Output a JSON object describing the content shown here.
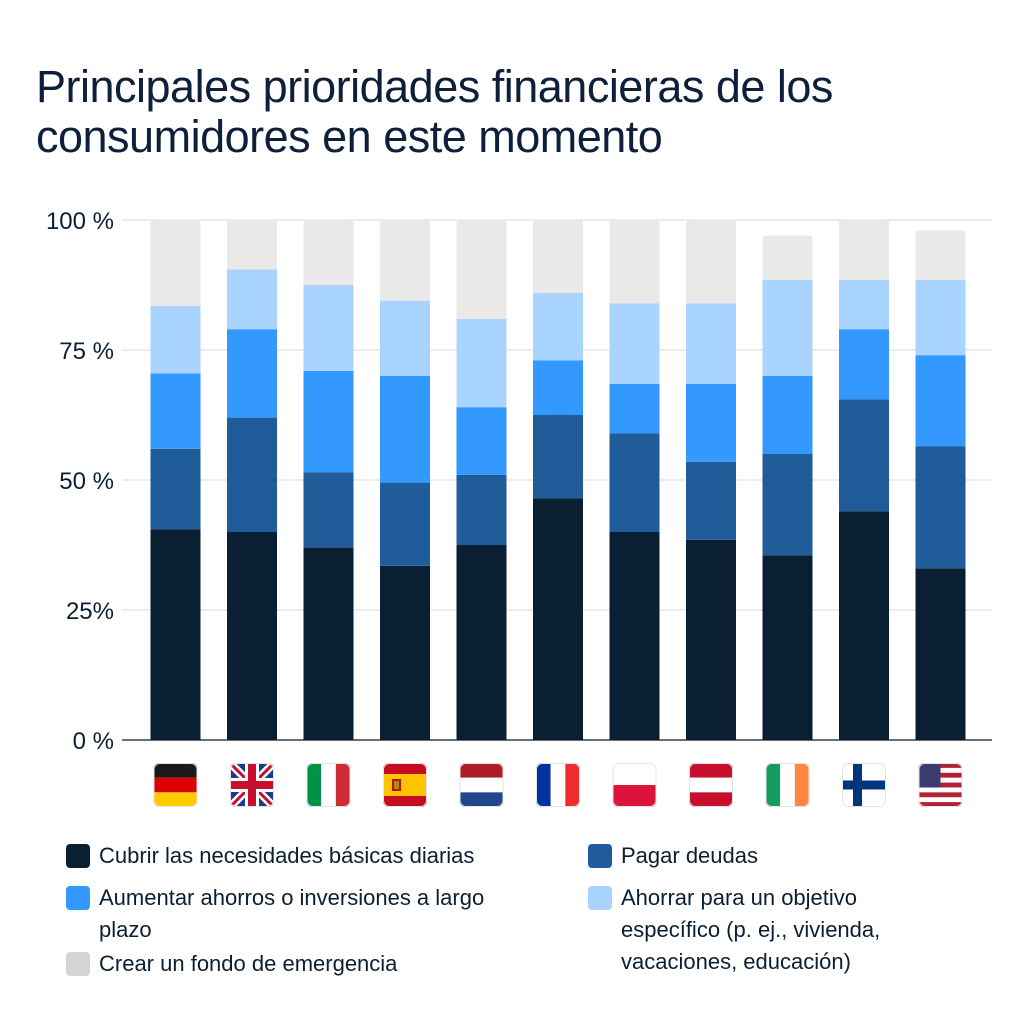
{
  "title": "Principales prioridades financieras de los consumidores en este momento",
  "chart_data": {
    "type": "bar",
    "stacked": true,
    "categories": [
      "Alemania",
      "Reino Unido",
      "Italia",
      "España",
      "Países Bajos",
      "Francia",
      "Polonia",
      "Austria",
      "Irlanda",
      "Finlandia",
      "Estados Unidos"
    ],
    "category_icons": [
      "flag-de",
      "flag-gb",
      "flag-it",
      "flag-es",
      "flag-nl",
      "flag-fr",
      "flag-pl",
      "flag-at",
      "flag-ie",
      "flag-fi",
      "flag-us"
    ],
    "ylim": [
      0,
      100
    ],
    "yticks": [
      {
        "value": 0,
        "label": "0 %"
      },
      {
        "value": 25,
        "label": "25%"
      },
      {
        "value": 50,
        "label": "50 %"
      },
      {
        "value": 75,
        "label": "75 %"
      },
      {
        "value": 100,
        "label": "100 %"
      }
    ],
    "grid": true,
    "legend_position": "bottom",
    "series": [
      {
        "name": "Cubrir las necesidades básicas diarias",
        "color": "#0b1f33",
        "values": [
          40.5,
          40,
          37,
          33.5,
          37.5,
          46.5,
          40,
          38.5,
          35.5,
          44,
          33
        ]
      },
      {
        "name": "Pagar deudas",
        "color": "#1f5c99",
        "values": [
          15.5,
          22,
          14.5,
          16,
          13.5,
          16,
          19,
          15,
          19.5,
          21.5,
          23.5
        ]
      },
      {
        "name": "Aumentar ahorros o inversiones a largo plazo",
        "color": "#3399ff",
        "values": [
          14.5,
          17,
          19.5,
          20.5,
          13,
          10.5,
          9.5,
          15,
          15,
          13.5,
          17.5
        ]
      },
      {
        "name": "Ahorrar para un objetivo específico (p. ej., vivienda, vacaciones, educación)",
        "color": "#a8d4ff",
        "values": [
          13,
          11.5,
          16.5,
          14.5,
          17,
          13,
          15.5,
          15.5,
          18.5,
          9.5,
          14.5
        ]
      },
      {
        "name": "Crear un fondo de emergencia",
        "color": "#ebe9e7",
        "values": [
          16.5,
          9.5,
          12.5,
          15.5,
          19,
          14,
          16,
          16,
          8.5,
          11.5,
          9.5
        ]
      }
    ]
  },
  "legend": {
    "swatch_colors": [
      "#0b1f33",
      "#1f5c99",
      "#3399ff",
      "#a8d4ff",
      "#d6d4d2"
    ],
    "items": [
      "Cubrir las necesidades básicas diarias",
      "Pagar deudas",
      "Aumentar ahorros o inversiones a largo plazo",
      "Ahorrar para un objetivo específico (p. ej., vivienda, vacaciones, educación)",
      "Crear un fondo de emergencia"
    ]
  }
}
